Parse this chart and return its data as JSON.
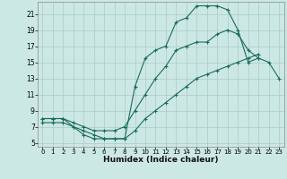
{
  "title": "",
  "xlabel": "Humidex (Indice chaleur)",
  "ylabel": "",
  "bg_color": "#cce8e4",
  "grid_color": "#b0cfcc",
  "line_color": "#1a6b5a",
  "xlim": [
    -0.5,
    23.5
  ],
  "ylim": [
    4.5,
    22.5
  ],
  "yticks": [
    5,
    7,
    9,
    11,
    13,
    15,
    17,
    19,
    21
  ],
  "xticks": [
    0,
    1,
    2,
    3,
    4,
    5,
    6,
    7,
    8,
    9,
    10,
    11,
    12,
    13,
    14,
    15,
    16,
    17,
    18,
    19,
    20,
    21,
    22,
    23
  ],
  "series": [
    {
      "x": [
        0,
        1,
        2,
        3,
        4,
        5,
        6,
        7,
        8,
        9,
        10,
        11,
        12,
        13,
        14,
        15,
        16,
        17,
        18,
        19,
        20,
        21
      ],
      "y": [
        8,
        8,
        8,
        7,
        6,
        5.5,
        5.5,
        5.5,
        5.5,
        12,
        15.5,
        16.5,
        17,
        20,
        20.5,
        22,
        22,
        22,
        21.5,
        19,
        15,
        15.5
      ]
    },
    {
      "x": [
        0,
        1,
        2,
        3,
        4,
        5,
        6,
        7,
        8,
        9,
        10,
        11,
        12,
        13,
        14,
        15,
        16,
        17,
        18,
        19,
        20,
        21,
        22,
        23
      ],
      "y": [
        8,
        8,
        8,
        7.5,
        7,
        6.5,
        6.5,
        6.5,
        7,
        9,
        11,
        13,
        14.5,
        16.5,
        17,
        17.5,
        17.5,
        18.5,
        19,
        18.5,
        16.5,
        15.5,
        15,
        13
      ]
    },
    {
      "x": [
        0,
        1,
        2,
        3,
        4,
        5,
        6,
        7,
        8,
        9,
        10,
        11,
        12,
        13,
        14,
        15,
        16,
        17,
        18,
        19,
        20,
        21
      ],
      "y": [
        7.5,
        7.5,
        7.5,
        7,
        6.5,
        6,
        5.5,
        5.5,
        5.5,
        6.5,
        8,
        9,
        10,
        11,
        12,
        13,
        13.5,
        14,
        14.5,
        15,
        15.5,
        16
      ]
    }
  ]
}
